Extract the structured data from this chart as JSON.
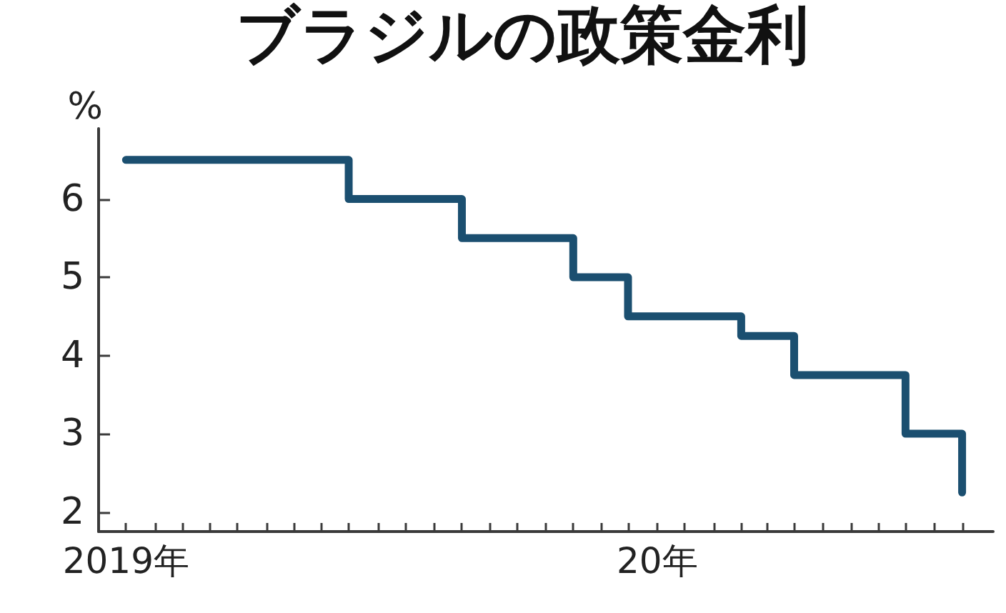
{
  "chart_data": {
    "type": "step",
    "title": "ブラジルの政策金利",
    "ylabel": "%",
    "x": [
      "2019-03-16",
      "2019-07-16",
      "2019-09-16",
      "2019-11-16",
      "2019-12-16",
      "2020-02-16",
      "2020-03-16",
      "2020-05-16",
      "2020-06-16"
    ],
    "values": [
      6.5,
      6.0,
      5.5,
      5.0,
      4.5,
      4.25,
      3.75,
      3.0,
      2.25
    ],
    "color": "#1b4f70",
    "marker": "none",
    "xlim": [
      "2019-03-01",
      "2020-07-03"
    ],
    "xticks": [
      {
        "value": "2019-03-16",
        "label": "2019年"
      },
      {
        "value": "2019-04-01",
        "label": null
      },
      {
        "value": "2019-04-16",
        "label": null
      },
      {
        "value": "2019-05-01",
        "label": null
      },
      {
        "value": "2019-05-16",
        "label": null
      },
      {
        "value": "2019-06-01",
        "label": null
      },
      {
        "value": "2019-06-16",
        "label": null
      },
      {
        "value": "2019-07-01",
        "label": null
      },
      {
        "value": "2019-07-16",
        "label": null
      },
      {
        "value": "2019-08-01",
        "label": null
      },
      {
        "value": "2019-08-16",
        "label": null
      },
      {
        "value": "2019-09-01",
        "label": null
      },
      {
        "value": "2019-09-16",
        "label": null
      },
      {
        "value": "2019-10-01",
        "label": null
      },
      {
        "value": "2019-10-16",
        "label": null
      },
      {
        "value": "2019-11-01",
        "label": null
      },
      {
        "value": "2019-11-16",
        "label": null
      },
      {
        "value": "2019-12-01",
        "label": null
      },
      {
        "value": "2019-12-16",
        "label": null
      },
      {
        "value": "2020-01-01",
        "label": "20年"
      },
      {
        "value": "2020-01-16",
        "label": null
      },
      {
        "value": "2020-02-01",
        "label": null
      },
      {
        "value": "2020-02-16",
        "label": null
      },
      {
        "value": "2020-03-01",
        "label": null
      },
      {
        "value": "2020-03-16",
        "label": null
      },
      {
        "value": "2020-04-01",
        "label": null
      },
      {
        "value": "2020-04-16",
        "label": null
      },
      {
        "value": "2020-05-01",
        "label": null
      },
      {
        "value": "2020-05-16",
        "label": null
      },
      {
        "value": "2020-06-01",
        "label": null
      },
      {
        "value": "2020-06-16",
        "label": null
      }
    ],
    "ylim": [
      1.75,
      6.9
    ],
    "yticks": [
      2,
      3,
      4,
      5,
      6
    ]
  }
}
